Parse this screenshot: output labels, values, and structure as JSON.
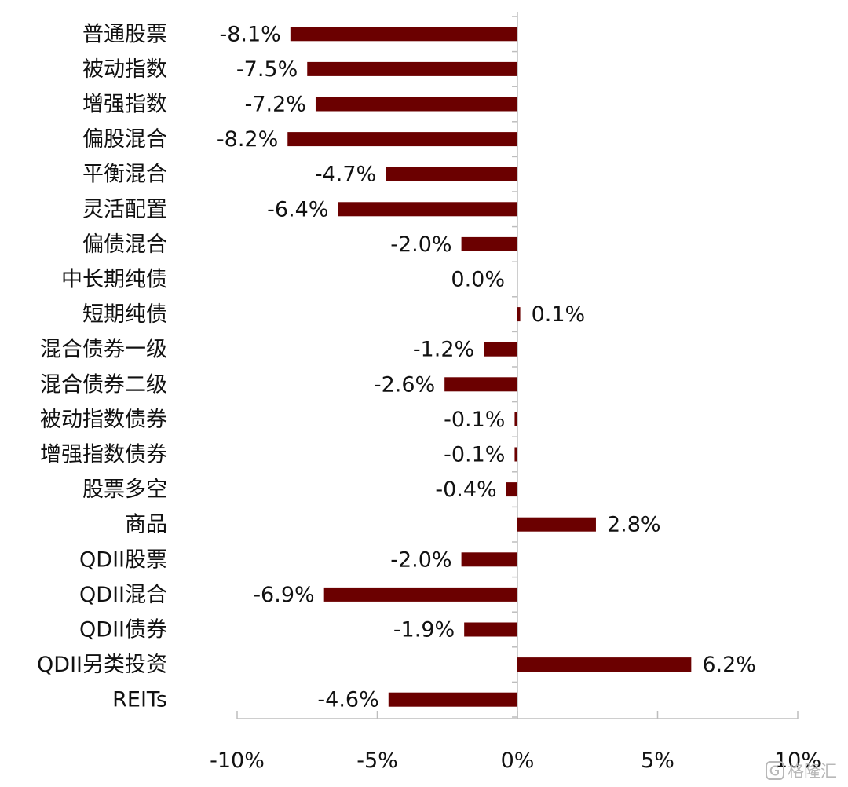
{
  "chart_data": {
    "type": "bar",
    "orientation": "horizontal",
    "categories": [
      "普通股票",
      "被动指数",
      "增强指数",
      "偏股混合",
      "平衡混合",
      "灵活配置",
      "偏债混合",
      "中长期纯债",
      "短期纯债",
      "混合债券一级",
      "混合债券二级",
      "被动指数债券",
      "增强指数债券",
      "股票多空",
      "商品",
      "QDII股票",
      "QDII混合",
      "QDII债券",
      "QDII另类投资",
      "REITs"
    ],
    "values": [
      -8.1,
      -7.5,
      -7.2,
      -8.2,
      -4.7,
      -6.4,
      -2.0,
      0.0,
      0.1,
      -1.2,
      -2.6,
      -0.1,
      -0.1,
      -0.4,
      2.8,
      -2.0,
      -6.9,
      -1.9,
      6.2,
      -4.6
    ],
    "data_labels": [
      "-8.1%",
      "-7.5%",
      "-7.2%",
      "-8.2%",
      "-4.7%",
      "-6.4%",
      "-2.0%",
      "0.0%",
      "0.1%",
      "-1.2%",
      "-2.6%",
      "-0.1%",
      "-0.1%",
      "-0.4%",
      "2.8%",
      "-2.0%",
      "-6.9%",
      "-1.9%",
      "6.2%",
      "-4.6%"
    ],
    "xlim": [
      -10,
      10
    ],
    "xticks": [
      -10,
      -5,
      0,
      5,
      10
    ],
    "xtick_labels": [
      "-10%",
      "-5%",
      "0%",
      "5%",
      "10%"
    ],
    "bar_color": "#6b0000",
    "grid": false,
    "title": "",
    "xlabel": "",
    "ylabel": ""
  },
  "watermark": {
    "text": "格隆汇",
    "icon": "gelonghui-logo-icon"
  }
}
